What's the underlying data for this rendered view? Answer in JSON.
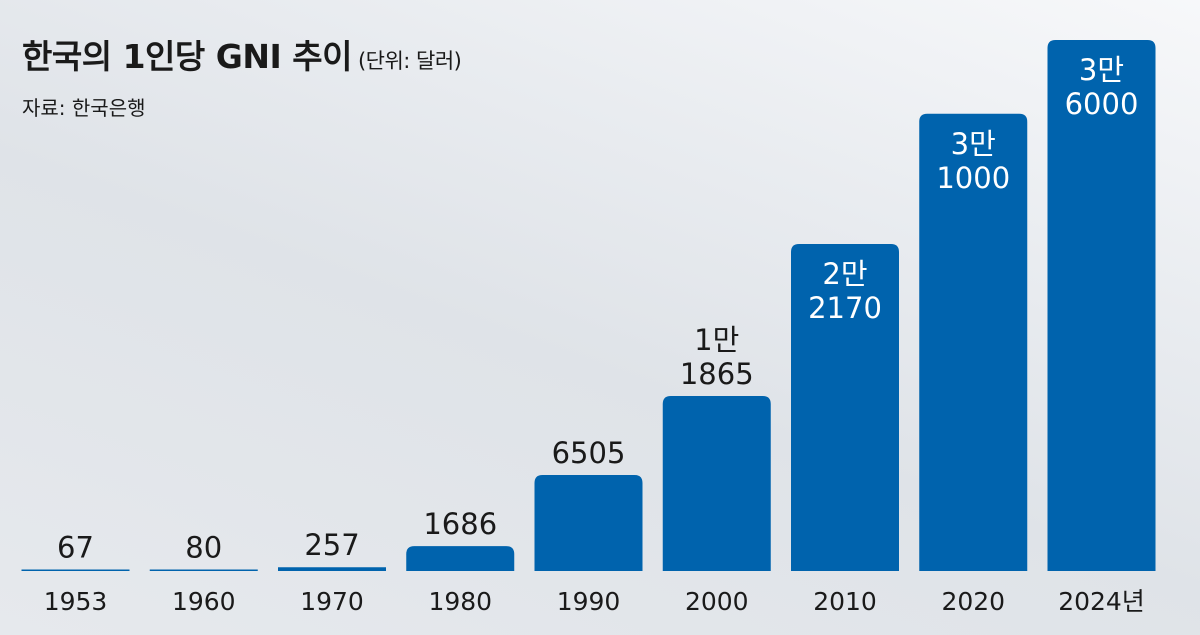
{
  "title": "한국의 1인당 GNI 추이",
  "unit": "(단위: 달러)",
  "source": "자료: 한국은행",
  "colors": {
    "bar": "#0063AD",
    "value_label": "#1a1a1a",
    "inbar_label": "#ffffff",
    "year_label": "#1a1a1a"
  },
  "chart_data": {
    "type": "bar",
    "title": "한국의 1인당 GNI 추이",
    "unit": "(단위: 달러)",
    "source": "자료: 한국은행",
    "categories": [
      "1953",
      "1960",
      "1970",
      "1980",
      "1990",
      "2000",
      "2010",
      "2020",
      "2024년"
    ],
    "values": [
      67,
      80,
      257,
      1686,
      6505,
      11865,
      22170,
      31000,
      36000
    ],
    "value_labels": [
      [
        "67"
      ],
      [
        "80"
      ],
      [
        "257"
      ],
      [
        "1686"
      ],
      [
        "6505"
      ],
      [
        "1만",
        "1865"
      ],
      [
        "2만",
        "2170"
      ],
      [
        "3만",
        "1000"
      ],
      [
        "3만",
        "6000"
      ]
    ],
    "label_inside_bar": [
      false,
      false,
      false,
      false,
      false,
      false,
      true,
      true,
      true
    ],
    "grid": false,
    "legend": "none"
  }
}
